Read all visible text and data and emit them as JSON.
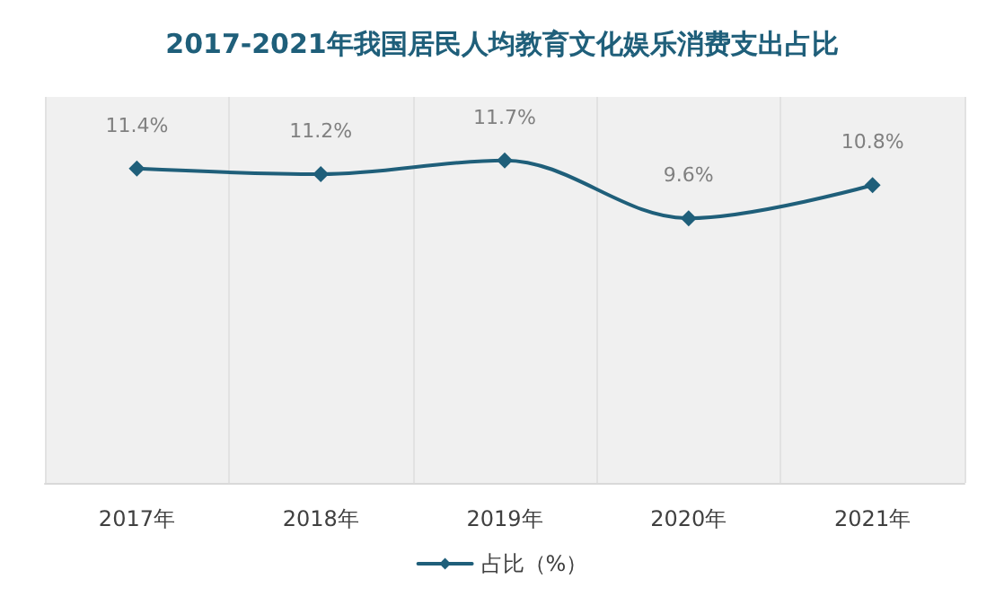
{
  "chart_data": {
    "type": "line",
    "title": "2017-2021年我国居民人均教育文化娱乐消费支出占比",
    "categories": [
      "2017年",
      "2018年",
      "2019年",
      "2020年",
      "2021年"
    ],
    "series": [
      {
        "name": "占比（%）",
        "color": "#1f5f7a",
        "values": [
          11.4,
          11.2,
          11.7,
          9.6,
          10.8
        ],
        "value_labels": [
          "11.4%",
          "11.2%",
          "11.7%",
          "9.6%",
          "10.8%"
        ]
      }
    ],
    "grid": "x",
    "legend": "bottom",
    "marker": "diamond",
    "line_style": "solid",
    "tick_labels": "x"
  }
}
